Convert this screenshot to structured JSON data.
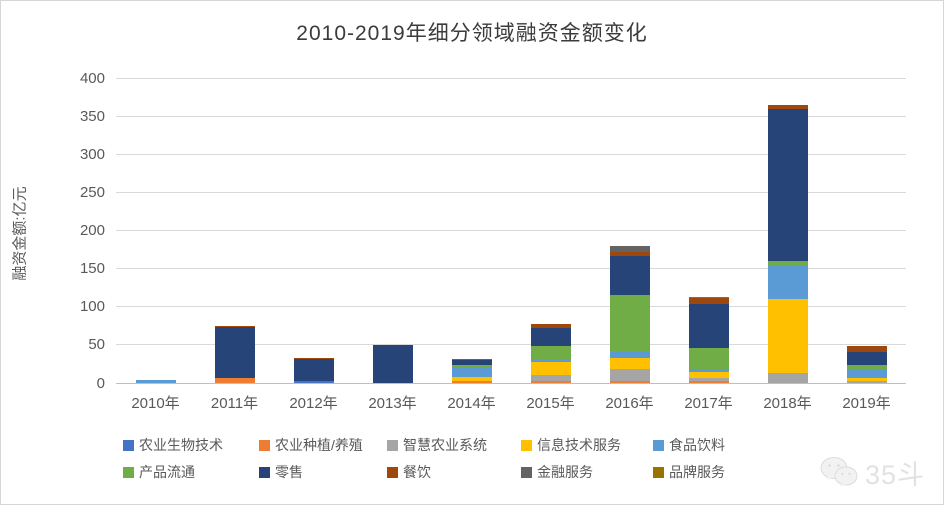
{
  "chart_data": {
    "type": "bar",
    "stacked": true,
    "title": "2010-2019年细分领域融资金额变化",
    "ylabel": "融资金额:亿元",
    "xlabel": "",
    "ylim": [
      0,
      400
    ],
    "ytick_step": 50,
    "yticks": [
      0,
      50,
      100,
      150,
      200,
      250,
      300,
      350,
      400
    ],
    "grid": true,
    "legend_position": "bottom",
    "categories": [
      "2010年",
      "2011年",
      "2012年",
      "2013年",
      "2014年",
      "2015年",
      "2016年",
      "2017年",
      "2018年",
      "2019年"
    ],
    "series": [
      {
        "name": "农业生物技术",
        "color": "#4472C4",
        "values": [
          0,
          0,
          2,
          0,
          0,
          0,
          0,
          0,
          0,
          0
        ]
      },
      {
        "name": "农业种植/养殖",
        "color": "#ED7D31",
        "values": [
          0,
          6,
          0,
          0,
          3,
          3,
          3,
          3,
          0,
          0
        ]
      },
      {
        "name": "智慧农业系统",
        "color": "#A5A5A5",
        "values": [
          0,
          0,
          0,
          0,
          0,
          7,
          15,
          3,
          13,
          3
        ]
      },
      {
        "name": "信息技术服务",
        "color": "#FFC000",
        "values": [
          0,
          0,
          0,
          0,
          5,
          18,
          15,
          9,
          97,
          3
        ]
      },
      {
        "name": "食品饮料",
        "color": "#5B9BD5",
        "values": [
          4,
          0,
          0,
          0,
          13,
          2,
          8,
          4,
          45,
          12
        ]
      },
      {
        "name": "产品流通",
        "color": "#70AD47",
        "values": [
          0,
          0,
          0,
          0,
          2,
          18,
          75,
          27,
          5,
          5
        ]
      },
      {
        "name": "零售",
        "color": "#264478",
        "values": [
          0,
          67,
          29,
          50,
          7,
          24,
          50,
          58,
          200,
          18
        ]
      },
      {
        "name": "餐饮",
        "color": "#9E480E",
        "values": [
          0,
          2,
          2,
          0,
          0,
          5,
          6,
          7,
          5,
          7
        ]
      },
      {
        "name": "金融服务",
        "color": "#636363",
        "values": [
          0,
          0,
          0,
          0,
          1,
          0,
          8,
          0,
          0,
          0
        ]
      },
      {
        "name": "品牌服务",
        "color": "#997300",
        "values": [
          0,
          0,
          0,
          0,
          0,
          0,
          0,
          2,
          0,
          0
        ]
      }
    ]
  },
  "watermark": {
    "label": "35斗",
    "icon": "wechat-logo-icon",
    "color": "#e2e2e2"
  }
}
